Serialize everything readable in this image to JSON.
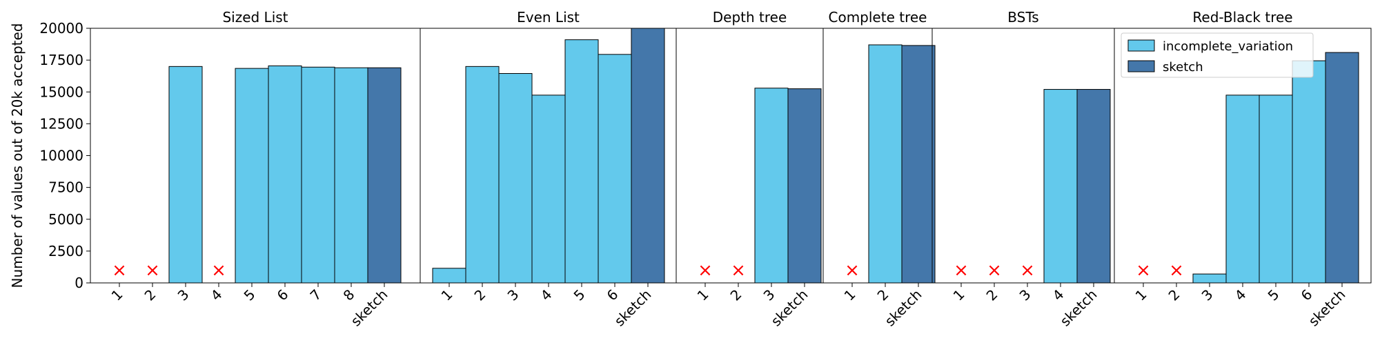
{
  "colors": {
    "incomplete": "#63c9ec",
    "sketch": "#4477aa",
    "edge": "#000000",
    "fail": "#ff0000"
  },
  "chart_data": {
    "type": "bar",
    "ylabel": "Number of values out of 20k accepted",
    "ylim": [
      0,
      20000
    ],
    "yticks": [
      0,
      2500,
      5000,
      7500,
      10000,
      12500,
      15000,
      17500,
      20000
    ],
    "grid": false,
    "legend": {
      "placement": "top-right",
      "entries": [
        {
          "name": "incomplete_variation",
          "color_key": "incomplete"
        },
        {
          "name": "sketch",
          "color_key": "sketch"
        }
      ]
    },
    "fail_marker": "×",
    "panels": [
      {
        "title": "Sized List",
        "categories": [
          "1",
          "2",
          "3",
          "4",
          "5",
          "6",
          "7",
          "8",
          "sketch"
        ],
        "values": [
          0,
          0,
          17000,
          0,
          16850,
          17050,
          16950,
          16900,
          16900
        ],
        "failed": [
          true,
          true,
          false,
          true,
          false,
          false,
          false,
          false,
          false
        ]
      },
      {
        "title": "Even List",
        "categories": [
          "1",
          "2",
          "3",
          "4",
          "5",
          "6",
          "sketch"
        ],
        "values": [
          1150,
          17000,
          16450,
          14750,
          19100,
          17950,
          20000
        ],
        "failed": [
          false,
          false,
          false,
          false,
          false,
          false,
          false
        ]
      },
      {
        "title": "Depth tree",
        "categories": [
          "1",
          "2",
          "3",
          "sketch"
        ],
        "values": [
          0,
          0,
          15300,
          15250
        ],
        "failed": [
          true,
          true,
          false,
          false
        ]
      },
      {
        "title": "Complete tree",
        "categories": [
          "1",
          "2",
          "sketch"
        ],
        "values": [
          0,
          18700,
          18650
        ],
        "failed": [
          true,
          false,
          false
        ]
      },
      {
        "title": "BSTs",
        "categories": [
          "1",
          "2",
          "3",
          "4",
          "sketch"
        ],
        "values": [
          0,
          0,
          0,
          15200,
          15200
        ],
        "failed": [
          true,
          true,
          true,
          false,
          false
        ]
      },
      {
        "title": "Red-Black tree",
        "categories": [
          "1",
          "2",
          "3",
          "4",
          "5",
          "6",
          "sketch"
        ],
        "values": [
          0,
          0,
          700,
          14750,
          14750,
          17450,
          18100
        ],
        "failed": [
          true,
          true,
          false,
          false,
          false,
          false,
          false
        ]
      }
    ]
  }
}
